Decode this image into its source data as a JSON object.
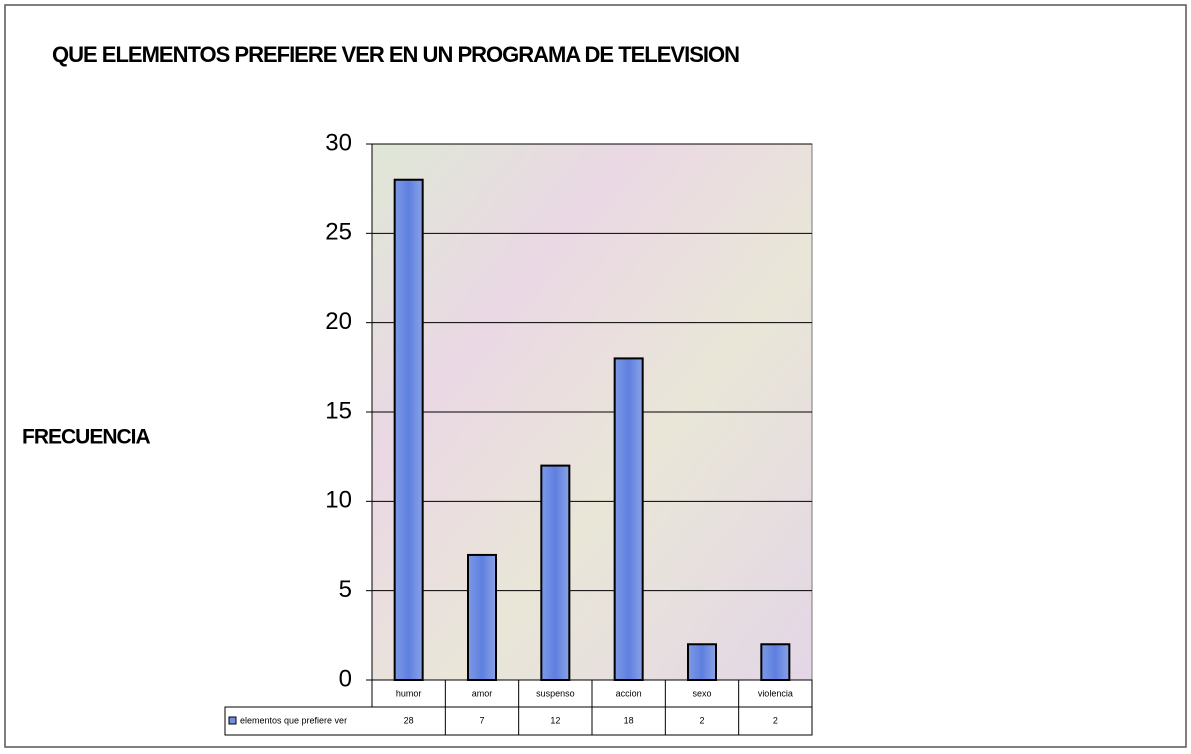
{
  "chart_data": {
    "type": "bar",
    "title": "QUE ELEMENTOS PREFIERE VER EN UN PROGRAMA DE TELEVISION",
    "y_label": "FRECUENCIA",
    "categories": [
      "humor",
      "amor",
      "suspenso",
      "accion",
      "sexo",
      "violencia"
    ],
    "series": [
      {
        "name": "elementos que prefiere ver",
        "color": "#6f8fe0",
        "values": [
          28,
          7,
          12,
          18,
          2,
          2
        ]
      }
    ],
    "ylim": [
      0,
      30
    ],
    "yticks": [
      0,
      5,
      10,
      15,
      20,
      25,
      30
    ],
    "grid": true
  }
}
